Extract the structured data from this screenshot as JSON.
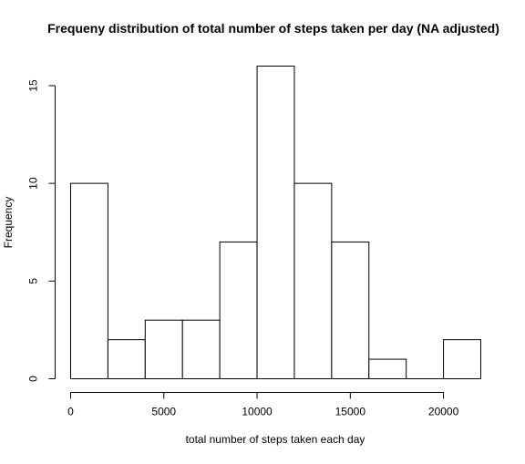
{
  "chart_data": {
    "type": "bar",
    "title": "Frequeny distribution of total number of steps taken per day (NA adjusted)",
    "xlabel": "total number of steps taken each day",
    "ylabel": "Frequency",
    "bins": [
      {
        "start": 0,
        "end": 2000,
        "count": 10
      },
      {
        "start": 2000,
        "end": 4000,
        "count": 2
      },
      {
        "start": 4000,
        "end": 6000,
        "count": 3
      },
      {
        "start": 6000,
        "end": 8000,
        "count": 3
      },
      {
        "start": 8000,
        "end": 10000,
        "count": 7
      },
      {
        "start": 10000,
        "end": 12000,
        "count": 16
      },
      {
        "start": 12000,
        "end": 14000,
        "count": 10
      },
      {
        "start": 14000,
        "end": 16000,
        "count": 7
      },
      {
        "start": 16000,
        "end": 18000,
        "count": 1
      },
      {
        "start": 18000,
        "end": 20000,
        "count": 0
      },
      {
        "start": 20000,
        "end": 22000,
        "count": 2
      }
    ],
    "xlim": [
      0,
      22000
    ],
    "ylim": [
      0,
      16
    ],
    "x_ticks": [
      0,
      5000,
      10000,
      15000,
      20000
    ],
    "x_tick_labels": [
      "0",
      "5000",
      "10000",
      "15000",
      "20000"
    ],
    "y_ticks": [
      0,
      5,
      10,
      15
    ],
    "y_tick_labels": [
      "0",
      "5",
      "10",
      "15"
    ],
    "grid": false,
    "colors": {
      "bar_fill": "#ffffff",
      "bar_stroke": "#000000"
    }
  }
}
